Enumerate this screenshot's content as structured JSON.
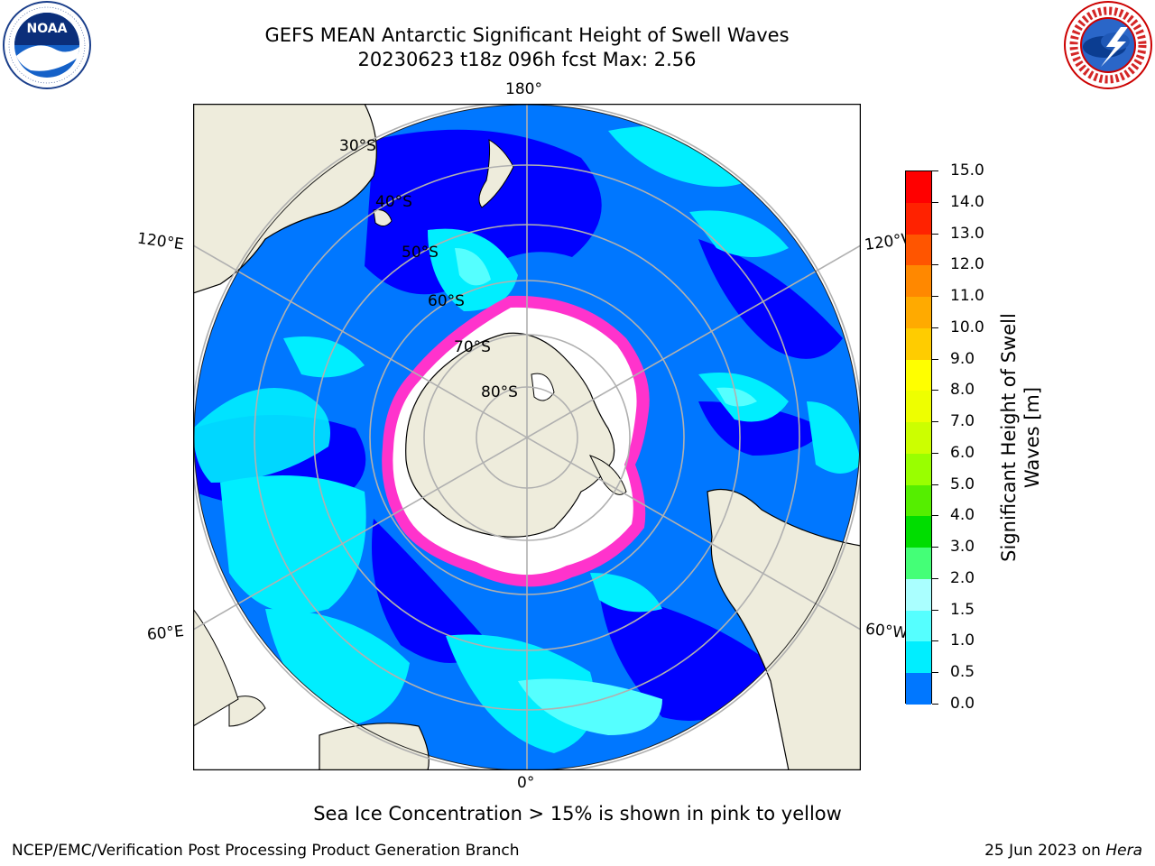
{
  "title": {
    "line1": "GEFS MEAN Antarctic Significant Height of Swell Waves",
    "line2": "20230623 t18z 096h fcst   Max: 2.56"
  },
  "logos": {
    "left": {
      "text": "NOAA",
      "ring_text": "NATIONAL OCEANIC AND ATMOSPHERIC ADMINISTRATION · U.S. DEPARTMENT OF COMMERCE"
    },
    "right": {
      "ring_text": "NATIONAL WEATHER SERVICE"
    }
  },
  "map": {
    "projection": "south polar stereographic",
    "longitude_labels": [
      "180°",
      "120°E",
      "120°W",
      "60°E",
      "60°W",
      "0°"
    ],
    "latitude_labels": [
      "30°S",
      "40°S",
      "50°S",
      "60°S",
      "70°S",
      "80°S"
    ],
    "colors": {
      "land": "#eeecdc",
      "ice_interior": "#ffffff",
      "ice_edge": "#ff33cc",
      "grid": "#b0b0b0"
    }
  },
  "colorbar": {
    "title": "Significant Height of Swell Waves [m]",
    "tick_labels": [
      "15.0",
      "14.0",
      "13.0",
      "12.0",
      "11.0",
      "10.0",
      "9.0",
      "8.0",
      "7.0",
      "6.0",
      "5.0",
      "4.0",
      "3.0",
      "2.0",
      "1.5",
      "1.0",
      "0.5",
      "0.0"
    ],
    "colors": [
      "#ff0000",
      "#ff2200",
      "#ff5500",
      "#ff8800",
      "#ffaa00",
      "#ffcc00",
      "#ffff00",
      "#eeff00",
      "#ccff00",
      "#99ff00",
      "#55ee00",
      "#00dd00",
      "#44ff77",
      "#aaffff",
      "#55ffff",
      "#00eeff",
      "#0077ff",
      "#0000ff"
    ]
  },
  "footnote": "Sea Ice Concentration > 15% is shown in pink to yellow",
  "credit": {
    "left": "NCEP/EMC/Verification Post Processing Product Generation Branch",
    "right_prefix": "25 Jun 2023 on ",
    "right_host": "Hera"
  }
}
